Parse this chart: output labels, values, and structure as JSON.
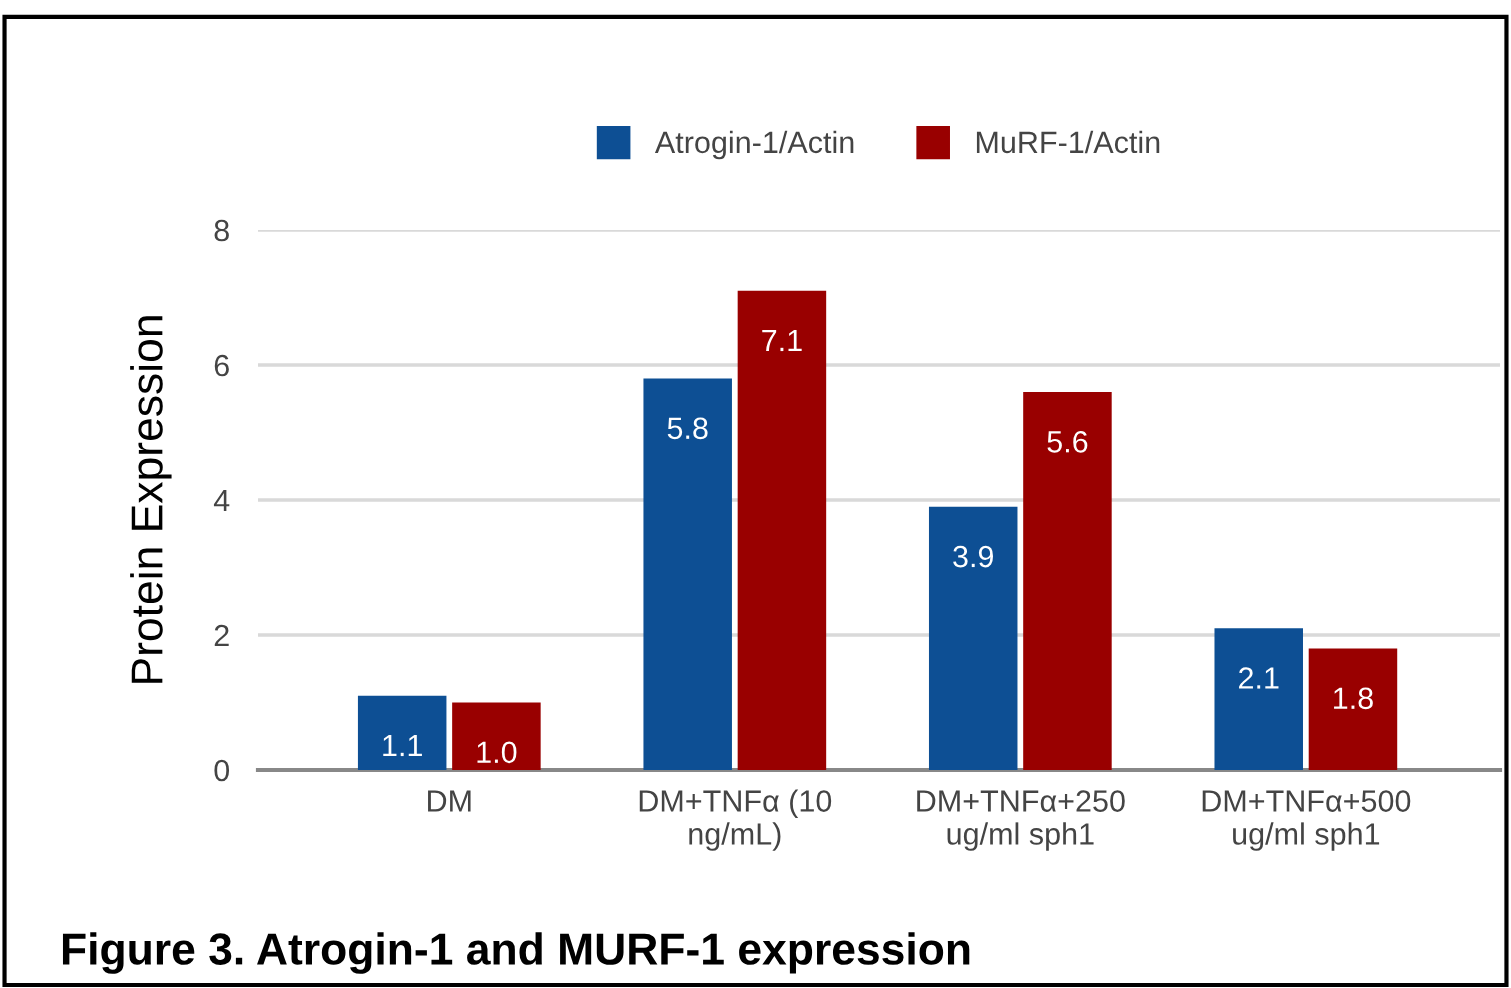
{
  "chart_data": {
    "type": "bar",
    "categories": [
      "DM",
      "DM+TNFα (10 ng/mL)",
      "DM+TNFα+250 ug/ml sph1",
      "DM+TNFα+500 ug/ml sph1"
    ],
    "series": [
      {
        "name": "Atrogin-1/Actin",
        "color": "#0d4f94",
        "values": [
          1.1,
          5.8,
          3.9,
          2.1
        ],
        "value_labels": [
          "1.1",
          "5.8",
          "3.9",
          "2.1"
        ]
      },
      {
        "name": "MuRF-1/Actin",
        "color": "#990000",
        "values": [
          1.0,
          7.1,
          5.6,
          1.8
        ],
        "value_labels": [
          "1.0",
          "7.1",
          "5.6",
          "1.8"
        ]
      }
    ],
    "ylabel": "Protein Expression",
    "ylim": [
      0,
      8
    ],
    "yticks": [
      0,
      2,
      4,
      6,
      8
    ],
    "grid": "y",
    "legend": "top",
    "annotations": [
      "Figure 3. Atrogin-1 and MURF-1 expression"
    ]
  }
}
